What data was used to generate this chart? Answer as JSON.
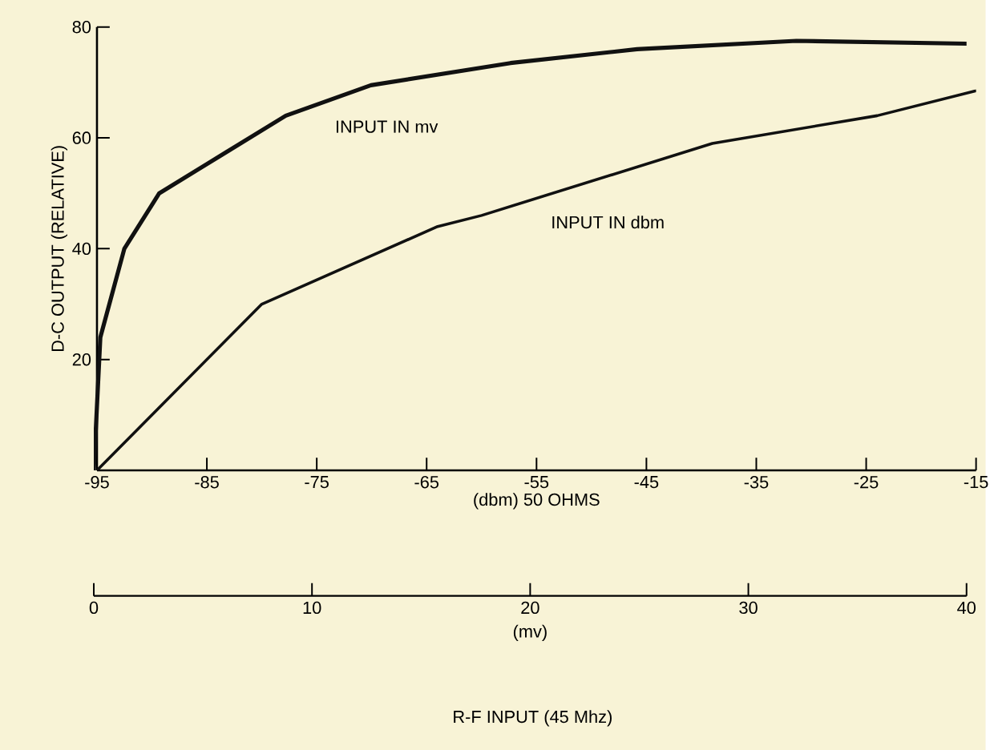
{
  "chart_data": {
    "type": "line",
    "xlabel": "(dbm) 50 OHMS",
    "x2label": "(mv)",
    "ylabel": "D-C OUTPUT (RELATIVE)",
    "xlim": [
      -95,
      -15
    ],
    "xticks": [
      -95,
      -85,
      -75,
      -65,
      -55,
      -45,
      -35,
      -25,
      -15
    ],
    "x2lim": [
      0,
      40
    ],
    "x2ticks": [
      0,
      10,
      20,
      30,
      40
    ],
    "ylim": [
      0,
      80
    ],
    "yticks": [
      20,
      40,
      60,
      80
    ],
    "annotations": [
      "R-F INPUT (45 Mhz)"
    ],
    "series": [
      {
        "name": "INPUT IN mv",
        "axis": "x2",
        "color": "#111111",
        "x": [
          0,
          0.3,
          1.4,
          3,
          5.9,
          8.8,
          12.7,
          19.1,
          24.9,
          32.2,
          40
        ],
        "values": [
          0,
          24,
          40,
          50,
          57,
          64,
          69.5,
          73.5,
          76,
          77.5,
          77
        ]
      },
      {
        "name": "INPUT IN dbm",
        "color": "#111111",
        "x": [
          -95,
          -80,
          -64,
          -60,
          -39,
          -24,
          -15
        ],
        "values": [
          0,
          30,
          44,
          46,
          59,
          64,
          68.5
        ]
      }
    ]
  }
}
